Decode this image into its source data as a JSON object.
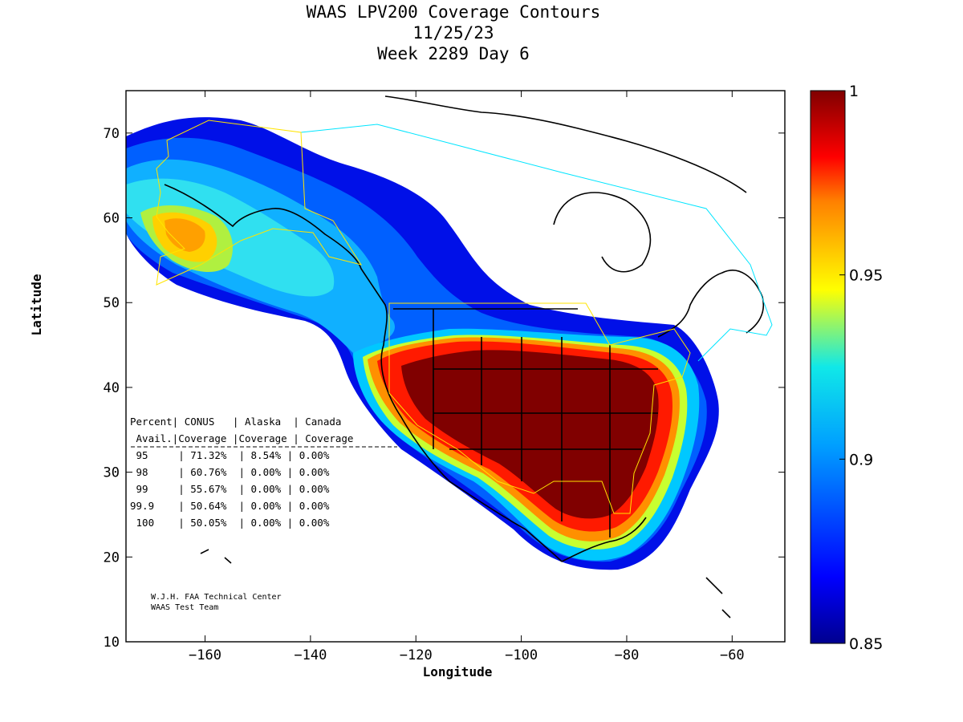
{
  "title": {
    "line1": "WAAS LPV200 Coverage Contours",
    "line2": "11/25/23",
    "line3": "Week 2289 Day 6"
  },
  "axes": {
    "xlabel": "Longitude",
    "ylabel": "Latitude",
    "x_ticks": [
      "-160",
      "-140",
      "-120",
      "-100",
      "-80",
      "-60"
    ],
    "y_ticks": [
      "10",
      "20",
      "30",
      "40",
      "50",
      "60",
      "70"
    ],
    "xlim": [
      -175,
      -50
    ],
    "ylim": [
      10,
      75
    ]
  },
  "colorbar": {
    "ticks": [
      "1",
      "0.95",
      "0.9",
      "0.85"
    ],
    "range": [
      0.85,
      1
    ]
  },
  "stats_table": {
    "header1": "Percent| CONUS   | Alaska  | Canada",
    "header2": " Avail.|Coverage |Coverage | Coverage",
    "rows": [
      {
        "avail": "95",
        "conus": "71.32%",
        "alaska": "8.54%",
        "canada": "0.00%"
      },
      {
        "avail": "98",
        "conus": "60.76%",
        "alaska": "0.00%",
        "canada": "0.00%"
      },
      {
        "avail": "99",
        "conus": "55.67%",
        "alaska": "0.00%",
        "canada": "0.00%"
      },
      {
        "avail": "99.9",
        "conus": "50.64%",
        "alaska": "0.00%",
        "canada": "0.00%"
      },
      {
        "avail": "100",
        "conus": "50.05%",
        "alaska": "0.00%",
        "canada": "0.00%"
      }
    ]
  },
  "credit": {
    "line1": "W.J.H. FAA Technical Center",
    "line2": "WAAS Test Team"
  },
  "colors": {
    "max": "#800000",
    "high": "#ff0000",
    "mid_high": "#ffd400",
    "mid": "#00d0ff",
    "low": "#0033ff",
    "min": "#00008f",
    "boundary_cyan": "#00e5ff",
    "boundary_yellow": "#ffe400"
  }
}
